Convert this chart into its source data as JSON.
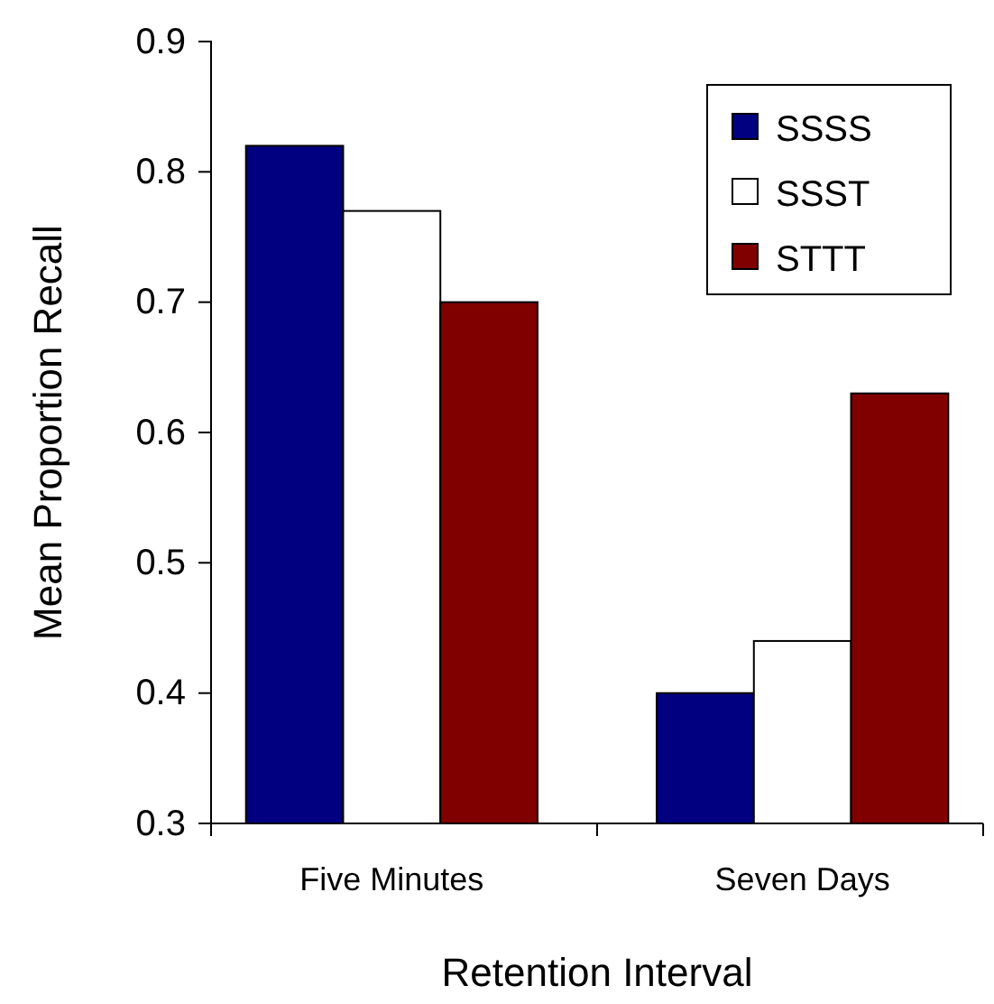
{
  "chart_data": {
    "type": "bar",
    "xlabel": "Retention Interval",
    "ylabel": "Mean Proportion Recall",
    "categories": [
      "Five Minutes",
      "Seven Days"
    ],
    "series": [
      {
        "name": "SSSS",
        "color": "#000080",
        "values": [
          0.82,
          0.4
        ]
      },
      {
        "name": "SSST",
        "color": "#ffffff",
        "values": [
          0.77,
          0.44
        ]
      },
      {
        "name": "STTT",
        "color": "#800000",
        "values": [
          0.7,
          0.63
        ]
      }
    ],
    "ylim": [
      0.3,
      0.9
    ],
    "yticks": [
      0.3,
      0.4,
      0.5,
      0.6,
      0.7,
      0.8,
      0.9
    ],
    "grid": false,
    "legend": "top right"
  }
}
